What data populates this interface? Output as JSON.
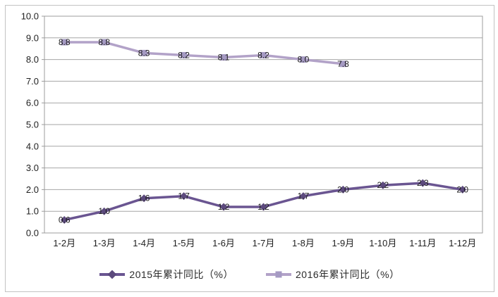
{
  "chart_data": {
    "type": "line",
    "title": "",
    "xlabel": "",
    "ylabel": "",
    "categories": [
      "1-2月",
      "1-3月",
      "1-4月",
      "1-5月",
      "1-6月",
      "1-7月",
      "1-8月",
      "1-9月",
      "1-10月",
      "1-11月",
      "1-12月"
    ],
    "series": [
      {
        "name": "2015年累计同比（%）",
        "values": [
          0.6,
          1.0,
          1.6,
          1.7,
          1.2,
          1.2,
          1.7,
          2.0,
          2.2,
          2.3,
          2.0
        ],
        "labels": [
          "0.6",
          "1.0",
          "1.6",
          "1.7",
          "1.2",
          "1.2",
          "1.7",
          "2.0",
          "2.2",
          "2.3",
          "2.0"
        ],
        "line_color": "#6a5591",
        "marker_color": "#5c4a7d",
        "marker": "diamond"
      },
      {
        "name": "2016年累计同比（%）",
        "values": [
          8.8,
          8.8,
          8.3,
          8.2,
          8.1,
          8.2,
          8.0,
          7.8
        ],
        "labels": [
          "8.8",
          "8.8",
          "8.3",
          "8.2",
          "8.1",
          "8.2",
          "8.0",
          "7.8"
        ],
        "line_color": "#b2a2c8",
        "marker_color": "#a59ac3",
        "marker": "square"
      }
    ],
    "y_ticks": [
      "0.0",
      "1.0",
      "2.0",
      "3.0",
      "4.0",
      "5.0",
      "6.0",
      "7.0",
      "8.0",
      "9.0",
      "10.0"
    ],
    "ylim": [
      0,
      10
    ],
    "grid": "horizontal",
    "gridline_color": "#a6a6a6",
    "plot_border_color": "#9c9c9c",
    "axis_text_color": "#1f1f1f",
    "data_label_color": "#1a1a1a",
    "legend_position": "bottom"
  }
}
